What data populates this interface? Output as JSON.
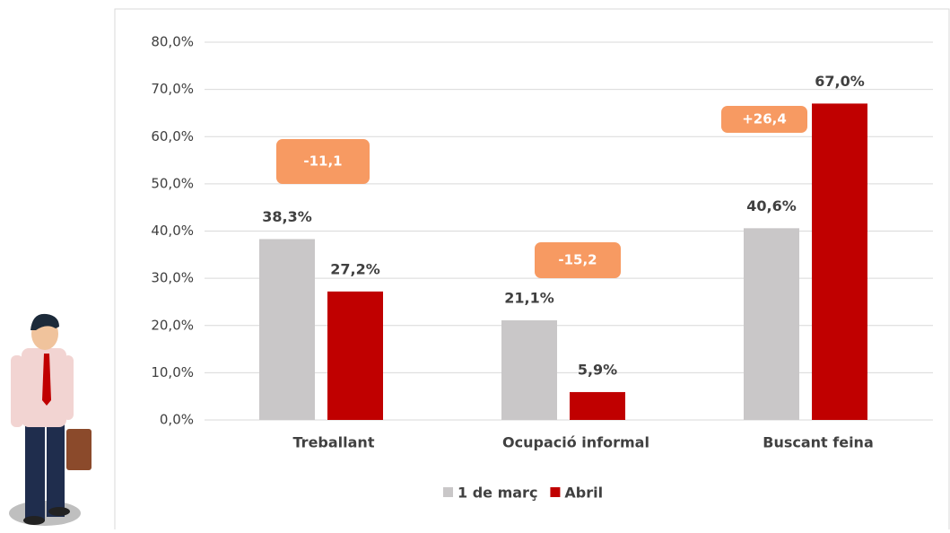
{
  "chart_data": {
    "type": "bar",
    "categories": [
      "Treballant",
      "Ocupació informal",
      "Buscant feina"
    ],
    "series": [
      {
        "name": "1 de març",
        "color": "#c9c7c8",
        "values": [
          38.3,
          21.1,
          40.6
        ],
        "value_labels": [
          "38,3%",
          "21,1%",
          "40,6%"
        ]
      },
      {
        "name": "Abril",
        "color": "#c00000",
        "values": [
          27.2,
          5.9,
          67.0
        ],
        "value_labels": [
          "27,2%",
          "5,9%",
          "67,0%"
        ]
      }
    ],
    "annotations": [
      "-11,1",
      "-15,2",
      "+26,4"
    ],
    "annotation_color": "#f79a62",
    "ylim": [
      0,
      80
    ],
    "yticks": [
      {
        "value": 0,
        "label": "0,0%"
      },
      {
        "value": 10,
        "label": "10,0%"
      },
      {
        "value": 20,
        "label": "20,0%"
      },
      {
        "value": 30,
        "label": "30,0%"
      },
      {
        "value": 40,
        "label": "40,0%"
      },
      {
        "value": 50,
        "label": "50,0%"
      },
      {
        "value": 60,
        "label": "60,0%"
      },
      {
        "value": 70,
        "label": "70,0%"
      },
      {
        "value": 80,
        "label": "80,0%"
      }
    ],
    "grid": true,
    "legend": "bottom"
  }
}
